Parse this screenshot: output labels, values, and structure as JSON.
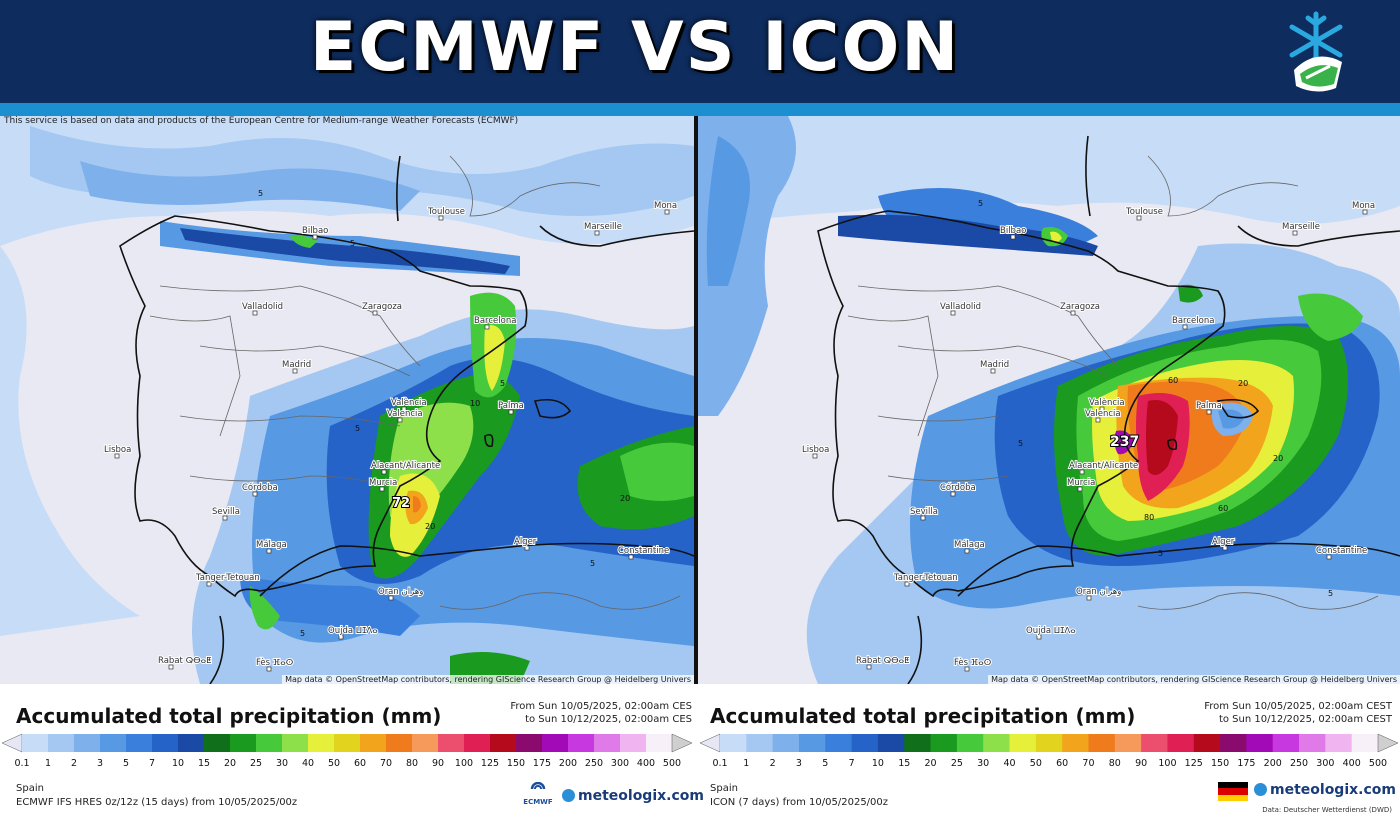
{
  "header": {
    "title": "ECMWF VS ICON"
  },
  "colors": {
    "header_bg": "#0e2c5e",
    "stripe": "#1c8fd0",
    "scale": [
      "#e6e6f5",
      "#c7dcf7",
      "#a4c8f2",
      "#7eb0ec",
      "#5899e4",
      "#3a7fdb",
      "#2563c8",
      "#1a4aa6",
      "#0f6f1a",
      "#1a9a1f",
      "#46c93a",
      "#8ee04a",
      "#e6f03a",
      "#e2d31e",
      "#f2a51c",
      "#f07b1c",
      "#f59a5a",
      "#ec4f6e",
      "#e01f55",
      "#b40a1c",
      "#8a0a6e",
      "#a20ab8",
      "#c838e0",
      "#e07ae8",
      "#f0b4f0",
      "#f7f0f8",
      "#cfcfcf"
    ]
  },
  "left_map": {
    "disclaimer": "This service is based on data and products of the European Centre for Medium-range Weather Forecasts (ECMWF)",
    "attribution": "Map data © OpenStreetMap contributors, rendering GIScience Research Group @ Heidelberg Univers",
    "max_label": "72",
    "cities": [
      {
        "name": "Toulouse"
      },
      {
        "name": "Marseille"
      },
      {
        "name": "Mona"
      },
      {
        "name": "Bilbao"
      },
      {
        "name": "Valladolid"
      },
      {
        "name": "Zaragoza"
      },
      {
        "name": "Barcelona"
      },
      {
        "name": "Madrid"
      },
      {
        "name": "València"
      },
      {
        "name": "Valencia"
      },
      {
        "name": "Palma"
      },
      {
        "name": "Lisboa"
      },
      {
        "name": "Alacant/Alicante"
      },
      {
        "name": "Murcia"
      },
      {
        "name": "Córdoba"
      },
      {
        "name": "Sevilla"
      },
      {
        "name": "Málaga"
      },
      {
        "name": "Alger"
      },
      {
        "name": "Constantine"
      },
      {
        "name": "Tanger-Tetouan"
      },
      {
        "name": "Oran ‫وهران‬"
      },
      {
        "name": "Oujda ⵡⵊⴷⴰ"
      },
      {
        "name": "Rabat ⵕⴱⴰⵟ"
      },
      {
        "name": "Fès ⴼⴰⵙ"
      }
    ]
  },
  "right_map": {
    "attribution": "Map data © OpenStreetMap contributors, rendering GIScience Research Group @ Heidelberg Univers",
    "max_label": "237",
    "cities": [
      {
        "name": "Toulouse"
      },
      {
        "name": "Marseille"
      },
      {
        "name": "Mona"
      },
      {
        "name": "Bilbao"
      },
      {
        "name": "Valladolid"
      },
      {
        "name": "Zaragoza"
      },
      {
        "name": "Barcelona"
      },
      {
        "name": "Madrid"
      },
      {
        "name": "València"
      },
      {
        "name": "Valencia"
      },
      {
        "name": "Palma"
      },
      {
        "name": "Lisboa"
      },
      {
        "name": "Alacant/Alicante"
      },
      {
        "name": "Murcia"
      },
      {
        "name": "Córdoba"
      },
      {
        "name": "Sevilla"
      },
      {
        "name": "Málaga"
      },
      {
        "name": "Alger"
      },
      {
        "name": "Constantine"
      },
      {
        "name": "Tanger-Tetouan"
      },
      {
        "name": "Oran ‫وهران‬"
      },
      {
        "name": "Oujda ⵡⵊⴷⴰ"
      },
      {
        "name": "Rabat ⵕⴱⴰⵟ"
      },
      {
        "name": "Fès ⴼⴰⵙ"
      }
    ]
  },
  "legend_left": {
    "title": "Accumulated total precipitation (mm)",
    "from": "From Sun 10/05/2025, 02:00am CES",
    "to": "to Sun 10/12/2025, 02:00am CES",
    "ticks": [
      "0.1",
      "1",
      "2",
      "3",
      "5",
      "7",
      "10",
      "15",
      "20",
      "25",
      "30",
      "40",
      "50",
      "60",
      "70",
      "80",
      "90",
      "100",
      "125",
      "150",
      "175",
      "200",
      "250",
      "300",
      "400",
      "500"
    ],
    "region": "Spain",
    "model": "ECMWF IFS HRES 0z/12z (15 days) from 10/05/2025/00z",
    "ecmwf_logo": "ECMWF",
    "brand": "meteologix.com"
  },
  "legend_right": {
    "title": "Accumulated total precipitation (mm)",
    "from": "From Sun 10/05/2025, 02:00am CEST",
    "to": "to Sun 10/12/2025, 02:00am CEST",
    "ticks": [
      "0.1",
      "1",
      "2",
      "3",
      "5",
      "7",
      "10",
      "15",
      "20",
      "25",
      "30",
      "40",
      "50",
      "60",
      "70",
      "80",
      "90",
      "100",
      "125",
      "150",
      "175",
      "200",
      "250",
      "300",
      "400",
      "500"
    ],
    "region": "Spain",
    "model": "ICON (7 days) from 10/05/2025/00z",
    "brand": "meteologix.com",
    "data_source": "Data: Deutscher Wetterdienst (DWD)"
  }
}
